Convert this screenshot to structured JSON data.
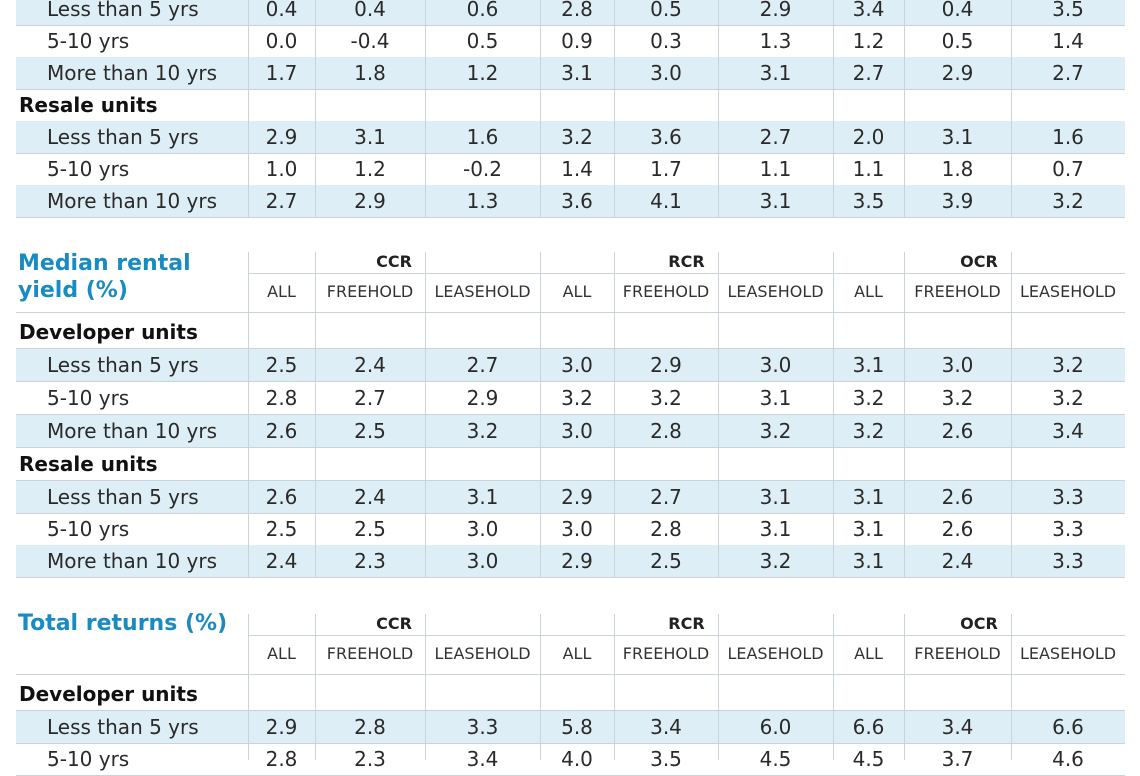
{
  "col_headers": [
    "ALL",
    "FREEHOLD",
    "LEASEHOLD",
    "ALL",
    "FREEHOLD",
    "LEASEHOLD",
    "ALL",
    "FREEHOLD",
    "LEASEHOLD"
  ],
  "regions": [
    "CCR",
    "RCR",
    "OCR"
  ],
  "top_section": {
    "rows": [
      {
        "label": "Less than 5 yrs",
        "values": [
          "0.4",
          "0.4",
          "0.6",
          "2.8",
          "0.5",
          "2.9",
          "3.4",
          "0.4",
          "3.5"
        ]
      },
      {
        "label": "5-10 yrs",
        "values": [
          "0.0",
          "-0.4",
          "0.5",
          "0.9",
          "0.3",
          "1.3",
          "1.2",
          "0.5",
          "1.4"
        ]
      },
      {
        "label": "More than 10 yrs",
        "values": [
          "1.7",
          "1.8",
          "1.2",
          "3.1",
          "3.0",
          "3.1",
          "2.7",
          "2.9",
          "2.7"
        ]
      }
    ],
    "resale_label": "Resale units",
    "resale_rows": [
      {
        "label": "Less than 5 yrs",
        "values": [
          "2.9",
          "3.1",
          "1.6",
          "3.2",
          "3.6",
          "2.7",
          "2.0",
          "3.1",
          "1.6"
        ]
      },
      {
        "label": "5-10 yrs",
        "values": [
          "1.0",
          "1.2",
          "-0.2",
          "1.4",
          "1.7",
          "1.1",
          "1.1",
          "1.8",
          "0.7"
        ]
      },
      {
        "label": "More than 10 yrs",
        "values": [
          "2.7",
          "2.9",
          "1.3",
          "3.6",
          "4.1",
          "3.1",
          "3.5",
          "3.9",
          "3.2"
        ]
      }
    ]
  },
  "rental_section": {
    "title": "Median rental\nyield (%)",
    "developer_label": "Developer units",
    "developer_rows": [
      {
        "label": "Less than 5 yrs",
        "values": [
          "2.5",
          "2.4",
          "2.7",
          "3.0",
          "2.9",
          "3.0",
          "3.1",
          "3.0",
          "3.2"
        ]
      },
      {
        "label": "5-10 yrs",
        "values": [
          "2.8",
          "2.7",
          "2.9",
          "3.2",
          "3.2",
          "3.1",
          "3.2",
          "3.2",
          "3.2"
        ]
      },
      {
        "label": "More than 10 yrs",
        "values": [
          "2.6",
          "2.5",
          "3.2",
          "3.0",
          "2.8",
          "3.2",
          "3.2",
          "2.6",
          "3.4"
        ]
      }
    ],
    "resale_label": "Resale units",
    "resale_rows": [
      {
        "label": "Less than 5 yrs",
        "values": [
          "2.6",
          "2.4",
          "3.1",
          "2.9",
          "2.7",
          "3.1",
          "3.1",
          "2.6",
          "3.3"
        ]
      },
      {
        "label": "5-10 yrs",
        "values": [
          "2.5",
          "2.5",
          "3.0",
          "3.0",
          "2.8",
          "3.1",
          "3.1",
          "2.6",
          "3.3"
        ]
      },
      {
        "label": "More than 10 yrs",
        "values": [
          "2.4",
          "2.3",
          "3.0",
          "2.9",
          "2.5",
          "3.2",
          "3.1",
          "2.4",
          "3.3"
        ]
      }
    ]
  },
  "returns_section": {
    "title": "Total returns (%)",
    "developer_label": "Developer units",
    "developer_rows": [
      {
        "label": "Less than 5 yrs",
        "values": [
          "2.9",
          "2.8",
          "3.3",
          "5.8",
          "3.4",
          "6.0",
          "6.6",
          "3.4",
          "6.6"
        ]
      },
      {
        "label": "5-10 yrs",
        "values": [
          "2.8",
          "2.3",
          "3.4",
          "4.0",
          "3.5",
          "4.5",
          "4.5",
          "3.7",
          "4.6"
        ]
      }
    ]
  }
}
